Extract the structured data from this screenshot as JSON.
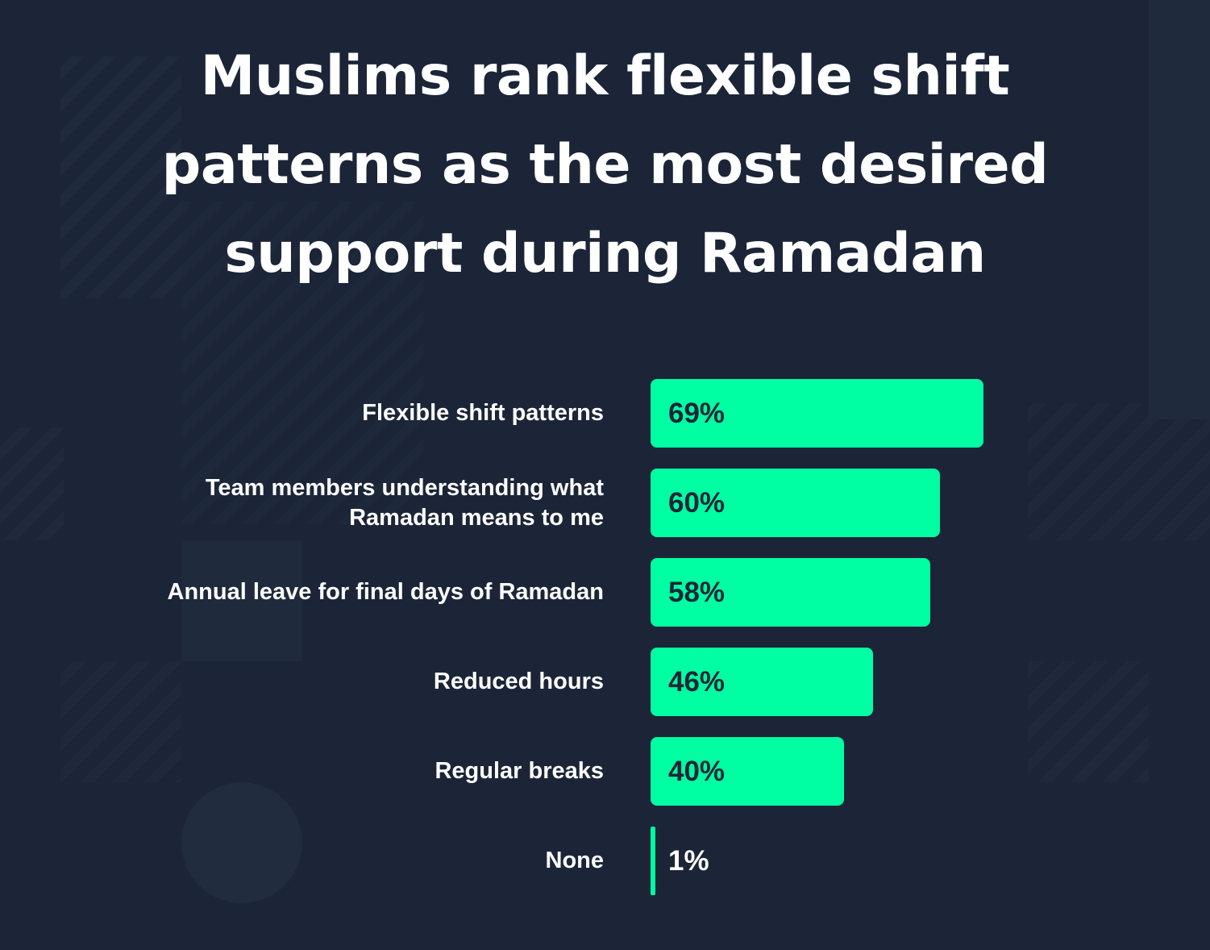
{
  "title": [
    "Muslims rank flexible shift",
    "patterns as the most desired",
    "support during Ramadan"
  ],
  "colors": {
    "background": "#1b2537",
    "bar": "#00ffa3",
    "text": "#ffffff",
    "value_text_inside": "#1b2537"
  },
  "chart_data": {
    "type": "bar",
    "orientation": "horizontal",
    "title": "Muslims rank flexible shift patterns as the most desired support during Ramadan",
    "categories": [
      [
        "Flexible shift patterns"
      ],
      [
        "Team members understanding what",
        "Ramadan means to me"
      ],
      [
        "Annual leave for final days of Ramadan"
      ],
      [
        "Reduced hours"
      ],
      [
        "Regular breaks"
      ],
      [
        "None"
      ]
    ],
    "values": [
      69,
      60,
      58,
      46,
      40,
      1
    ],
    "value_labels": [
      "69%",
      "60%",
      "58%",
      "46%",
      "40%",
      "1%"
    ],
    "unit": "%",
    "xlim": [
      0,
      100
    ],
    "grid": false,
    "legend": "none"
  }
}
